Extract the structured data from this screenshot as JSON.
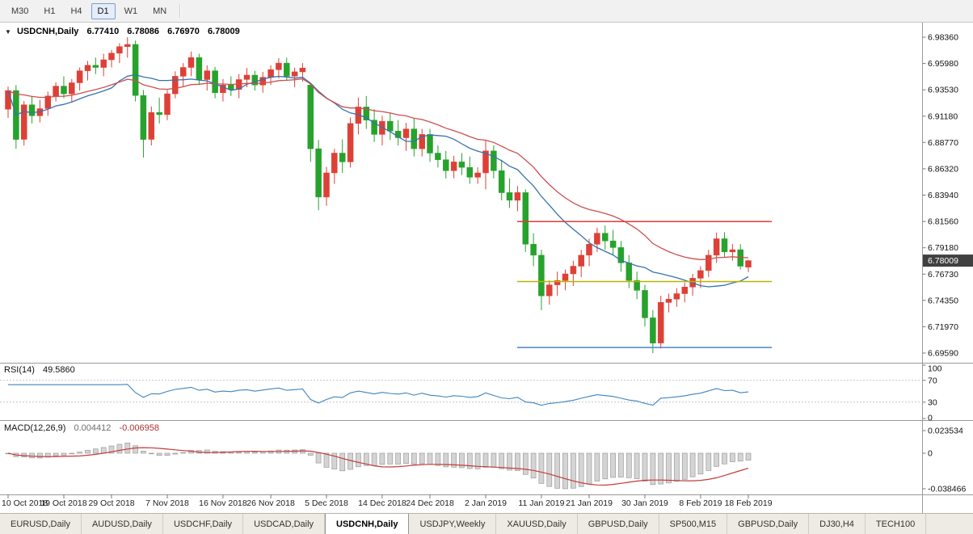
{
  "toolbar": {
    "timeframes": [
      {
        "label": "M30",
        "active": false
      },
      {
        "label": "H1",
        "active": false
      },
      {
        "label": "H4",
        "active": false
      },
      {
        "label": "D1",
        "active": true
      },
      {
        "label": "W1",
        "active": false
      },
      {
        "label": "MN",
        "active": false
      }
    ]
  },
  "chart_header": {
    "symbol": "USDCNH,Daily",
    "open": "6.77410",
    "high": "6.78086",
    "low": "6.76970",
    "close": "6.78009"
  },
  "indicators": {
    "rsi": {
      "label": "RSI(14)",
      "value": "49.5860",
      "period": 14,
      "levels": [
        70,
        30
      ],
      "axis_labels": [
        "100",
        "70",
        "30",
        "0"
      ],
      "range": [
        0,
        100
      ]
    },
    "macd": {
      "label": "MACD(12,26,9)",
      "value_main": "0.004412",
      "value_signal": "-0.006958",
      "fast": 12,
      "slow": 26,
      "signal": 9,
      "axis_labels": [
        "0.023534",
        "0",
        "-0.038466"
      ]
    }
  },
  "colors": {
    "up_candle": "#dd4037",
    "down_candle": "#27a22d",
    "ma_fast": "#3572b0",
    "ma_slow": "#cc4f4f",
    "rsi_line": "#3d85c0",
    "macd_hist_fill": "#d4d4d4",
    "macd_hist_stroke": "#9b9b9b",
    "macd_signal": "#c43b3b",
    "price_tag_bg": "#404040"
  },
  "chart_data": {
    "type": "candlestick",
    "symbol": "USDCNH",
    "timeframe": "Daily",
    "price_axis_labels": [
      "6.98360",
      "6.95980",
      "6.93530",
      "6.91180",
      "6.88770",
      "6.86320",
      "6.83940",
      "6.81560",
      "6.79180",
      "6.76730",
      "6.74350",
      "6.71970",
      "6.69590"
    ],
    "price_axis_range": [
      6.9836,
      6.6959
    ],
    "current_price": 6.78009,
    "current_price_label": "6.78009",
    "x_axis_labels": [
      {
        "text": "10 Oct 2018",
        "index": 0
      },
      {
        "text": "19 Oct 2018",
        "index": 7
      },
      {
        "text": "29 Oct 2018",
        "index": 13
      },
      {
        "text": "7 Nov 2018",
        "index": 20
      },
      {
        "text": "16 Nov 2018",
        "index": 27
      },
      {
        "text": "26 Nov 2018",
        "index": 33
      },
      {
        "text": "5 Dec 2018",
        "index": 40
      },
      {
        "text": "14 Dec 2018",
        "index": 47
      },
      {
        "text": "24 Dec 2018",
        "index": 53
      },
      {
        "text": "2 Jan 2019",
        "index": 60
      },
      {
        "text": "11 Jan 2019",
        "index": 67
      },
      {
        "text": "21 Jan 2019",
        "index": 73
      },
      {
        "text": "30 Jan 2019",
        "index": 80
      },
      {
        "text": "8 Feb 2019",
        "index": 87
      },
      {
        "text": "18 Feb 2019",
        "index": 93
      }
    ],
    "hlines": [
      {
        "price": 6.8156,
        "color": "#e23a3a"
      },
      {
        "price": 6.761,
        "color": "#b9b400"
      },
      {
        "price": 6.701,
        "color": "#4a87c6"
      }
    ],
    "moving_averages": [
      {
        "period": 13,
        "method": "sma",
        "color": "#3572b0"
      },
      {
        "period": 26,
        "method": "ema",
        "color": "#cc4f4f"
      }
    ],
    "candles": [
      [
        6.918,
        6.9385,
        6.91,
        6.935
      ],
      [
        6.935,
        6.94,
        6.882,
        6.8905
      ],
      [
        6.8905,
        6.9255,
        6.885,
        6.922
      ],
      [
        6.922,
        6.93,
        6.905,
        6.912
      ],
      [
        6.912,
        6.9265,
        6.906,
        6.9185
      ],
      [
        6.9185,
        6.934,
        6.912,
        6.93
      ],
      [
        6.93,
        6.9425,
        6.925,
        6.939
      ],
      [
        6.939,
        6.948,
        6.928,
        6.932
      ],
      [
        6.932,
        6.9455,
        6.925,
        6.942
      ],
      [
        6.942,
        6.956,
        6.935,
        6.953
      ],
      [
        6.953,
        6.962,
        6.944,
        6.958
      ],
      [
        6.958,
        6.965,
        6.95,
        6.956
      ],
      [
        6.956,
        6.9685,
        6.948,
        6.963
      ],
      [
        6.963,
        6.972,
        6.956,
        6.969
      ],
      [
        6.969,
        6.978,
        6.96,
        6.975
      ],
      [
        6.975,
        6.9836,
        6.965,
        6.977
      ],
      [
        6.977,
        6.9805,
        6.925,
        6.9305
      ],
      [
        6.9305,
        6.9355,
        6.874,
        6.8905
      ],
      [
        6.8905,
        6.9205,
        6.885,
        6.915
      ],
      [
        6.915,
        6.9285,
        6.905,
        6.913
      ],
      [
        6.913,
        6.9355,
        6.908,
        6.932
      ],
      [
        6.932,
        6.9525,
        6.928,
        6.948
      ],
      [
        6.948,
        6.96,
        6.938,
        6.956
      ],
      [
        6.956,
        6.9705,
        6.948,
        6.965
      ],
      [
        6.965,
        6.9685,
        6.94,
        6.945
      ],
      [
        6.945,
        6.958,
        6.935,
        6.953
      ],
      [
        6.953,
        6.9565,
        6.928,
        6.933
      ],
      [
        6.933,
        6.9455,
        6.925,
        6.94
      ],
      [
        6.94,
        6.948,
        6.93,
        6.936
      ],
      [
        6.936,
        6.95,
        6.928,
        6.945
      ],
      [
        6.945,
        6.9555,
        6.938,
        6.949
      ],
      [
        6.949,
        6.953,
        6.935,
        6.94
      ],
      [
        6.94,
        6.952,
        6.933,
        6.947
      ],
      [
        6.947,
        6.958,
        6.94,
        6.954
      ],
      [
        6.954,
        6.9645,
        6.946,
        6.96
      ],
      [
        6.96,
        6.965,
        6.944,
        6.948
      ],
      [
        6.948,
        6.956,
        6.938,
        6.952
      ],
      [
        6.952,
        6.96,
        6.943,
        6.9555
      ],
      [
        6.94,
        6.942,
        6.87,
        6.882
      ],
      [
        6.882,
        6.89,
        6.826,
        6.838
      ],
      [
        6.838,
        6.8655,
        6.83,
        6.86
      ],
      [
        6.86,
        6.882,
        6.85,
        6.878
      ],
      [
        6.878,
        6.8905,
        6.86,
        6.87
      ],
      [
        6.87,
        6.9105,
        6.865,
        6.905
      ],
      [
        6.905,
        6.9285,
        6.895,
        6.92
      ],
      [
        6.92,
        6.93,
        6.9,
        6.908
      ],
      [
        6.908,
        6.918,
        6.888,
        6.895
      ],
      [
        6.895,
        6.912,
        6.885,
        6.907
      ],
      [
        6.907,
        6.915,
        6.89,
        6.898
      ],
      [
        6.898,
        6.908,
        6.885,
        6.892
      ],
      [
        6.892,
        6.9055,
        6.88,
        6.9
      ],
      [
        6.9,
        6.91,
        6.875,
        6.882
      ],
      [
        6.882,
        6.9,
        6.875,
        6.895
      ],
      [
        6.895,
        6.9,
        6.87,
        6.878
      ],
      [
        6.878,
        6.885,
        6.865,
        6.872
      ],
      [
        6.872,
        6.88,
        6.855,
        6.862
      ],
      [
        6.862,
        6.8755,
        6.855,
        6.87
      ],
      [
        6.87,
        6.878,
        6.858,
        6.865
      ],
      [
        6.865,
        6.875,
        6.85,
        6.856
      ],
      [
        6.856,
        6.865,
        6.85,
        6.86
      ],
      [
        6.86,
        6.89,
        6.845,
        6.88
      ],
      [
        6.88,
        6.885,
        6.855,
        6.862
      ],
      [
        6.862,
        6.872,
        6.835,
        6.842
      ],
      [
        6.842,
        6.855,
        6.828,
        6.835
      ],
      [
        6.835,
        6.848,
        6.825,
        6.842
      ],
      [
        6.842,
        6.845,
        6.788,
        6.795
      ],
      [
        6.795,
        6.805,
        6.775,
        6.785
      ],
      [
        6.785,
        6.79,
        6.735,
        6.748
      ],
      [
        6.748,
        6.762,
        6.74,
        6.758
      ],
      [
        6.758,
        6.77,
        6.748,
        6.762
      ],
      [
        6.762,
        6.772,
        6.753,
        6.768
      ],
      [
        6.768,
        6.78,
        6.757,
        6.775
      ],
      [
        6.775,
        6.79,
        6.765,
        6.785
      ],
      [
        6.785,
        6.8,
        6.775,
        6.795
      ],
      [
        6.795,
        6.81,
        6.788,
        6.805
      ],
      [
        6.805,
        6.812,
        6.79,
        6.798
      ],
      [
        6.798,
        6.808,
        6.785,
        6.792
      ],
      [
        6.792,
        6.798,
        6.77,
        6.778
      ],
      [
        6.778,
        6.785,
        6.755,
        6.762
      ],
      [
        6.762,
        6.77,
        6.745,
        6.753
      ],
      [
        6.753,
        6.758,
        6.72,
        6.728
      ],
      [
        6.728,
        6.735,
        6.6959,
        6.705
      ],
      [
        6.705,
        6.748,
        6.7,
        6.742
      ],
      [
        6.742,
        6.75,
        6.733,
        6.745
      ],
      [
        6.745,
        6.755,
        6.738,
        6.75
      ],
      [
        6.75,
        6.76,
        6.742,
        6.756
      ],
      [
        6.756,
        6.768,
        6.748,
        6.764
      ],
      [
        6.764,
        6.775,
        6.755,
        6.771
      ],
      [
        6.771,
        6.79,
        6.765,
        6.785
      ],
      [
        6.785,
        6.8055,
        6.778,
        6.8
      ],
      [
        6.8,
        6.806,
        6.783,
        6.788
      ],
      [
        6.788,
        6.795,
        6.78,
        6.79
      ],
      [
        6.79,
        6.795,
        6.772,
        6.775
      ],
      [
        6.7741,
        6.78086,
        6.7697,
        6.78009
      ]
    ]
  },
  "tabbar": {
    "tabs": [
      {
        "label": "EURUSD,Daily",
        "active": false
      },
      {
        "label": "AUDUSD,Daily",
        "active": false
      },
      {
        "label": "USDCHF,Daily",
        "active": false
      },
      {
        "label": "USDCAD,Daily",
        "active": false
      },
      {
        "label": "USDCNH,Daily",
        "active": true
      },
      {
        "label": "USDJPY,Weekly",
        "active": false
      },
      {
        "label": "XAUUSD,Daily",
        "active": false
      },
      {
        "label": "GBPUSD,Daily",
        "active": false
      },
      {
        "label": "SP500,M15",
        "active": false
      },
      {
        "label": "GBPUSD,Daily",
        "active": false
      },
      {
        "label": "DJ30,H4",
        "active": false
      },
      {
        "label": "TECH100",
        "active": false
      }
    ]
  }
}
